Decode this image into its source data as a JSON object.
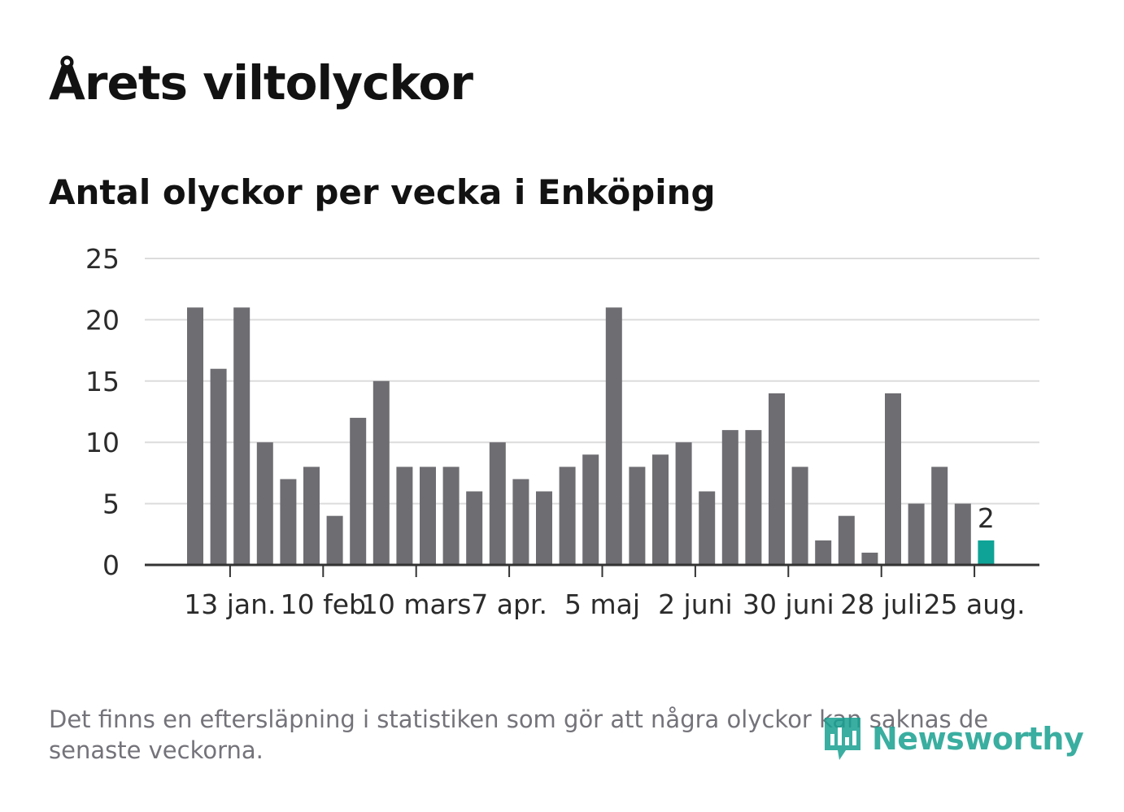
{
  "title": "Årets viltolyckor",
  "subtitle": "Antal olyckor per vecka i Enköping",
  "footnote": "Det finns en eftersläpning i statistiken som gör att några olyckor kan saknas de senaste veckorna.",
  "brand": {
    "name": "Newsworthy",
    "color": "#18a090"
  },
  "colors": {
    "bar": "#6e6d72",
    "highlight": "#0ea396",
    "grid": "#dcdcdc",
    "axis": "#333333"
  },
  "chart_data": {
    "type": "bar",
    "title": "Antal olyckor per vecka i Enköping",
    "xlabel": "",
    "ylabel": "",
    "ylim": [
      0,
      25
    ],
    "yticks": [
      0,
      5,
      10,
      15,
      20,
      25
    ],
    "grid": true,
    "values": [
      21,
      16,
      21,
      10,
      7,
      8,
      4,
      12,
      15,
      8,
      8,
      8,
      6,
      10,
      7,
      6,
      8,
      9,
      21,
      8,
      9,
      10,
      6,
      11,
      11,
      14,
      8,
      2,
      4,
      1,
      14,
      5,
      8,
      5,
      2
    ],
    "xtick_labels": [
      {
        "label": "13 jan.",
        "index": 1
      },
      {
        "label": "10 feb",
        "index": 5
      },
      {
        "label": "10 mars",
        "index": 9
      },
      {
        "label": "7 apr.",
        "index": 13
      },
      {
        "label": "5 maj",
        "index": 17
      },
      {
        "label": "2 juni",
        "index": 21
      },
      {
        "label": "30 juni",
        "index": 25
      },
      {
        "label": "28 juli",
        "index": 29
      },
      {
        "label": "25 aug.",
        "index": 33
      }
    ],
    "highlight_index": 34,
    "highlight_label": "2"
  }
}
